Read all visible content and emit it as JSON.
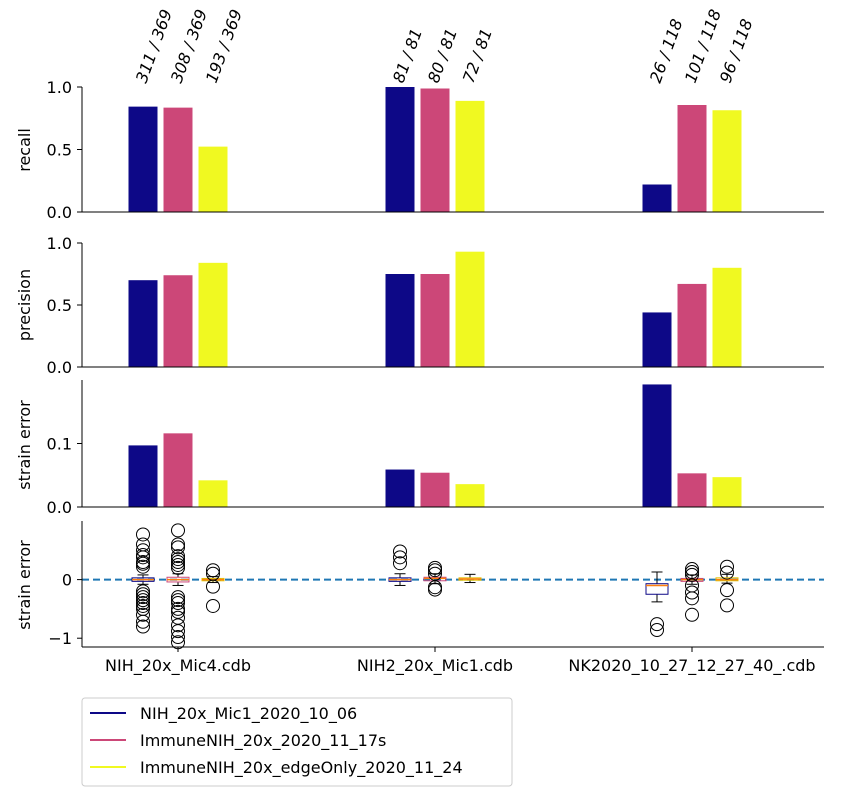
{
  "colors": {
    "series": [
      "#0d0887",
      "#cc4778",
      "#f0f921"
    ],
    "zero_line": "#1f77b4",
    "box_edge": "#0000ff",
    "median": "#ff7f0e",
    "flier": "#000000"
  },
  "chart_data": [
    {
      "type": "bar",
      "ylabel": "recall",
      "categories": [
        "NIH_20x_Mic4.cdb",
        "NIH2_20x_Mic1.cdb",
        "NK2020_10_27_12_27_40_.cdb"
      ],
      "ylim": [
        0,
        1
      ],
      "yticks": [
        "0.0",
        "0.5",
        "1.0"
      ],
      "series": [
        {
          "name": "NIH_20x_Mic1_2020_10_06",
          "values": [
            0.843,
            1.0,
            0.22
          ]
        },
        {
          "name": "ImmuneNIH_20x_2020_11_17s",
          "values": [
            0.835,
            0.988,
            0.856
          ]
        },
        {
          "name": "ImmuneNIH_20x_edgeOnly_2020_11_24",
          "values": [
            0.523,
            0.889,
            0.814
          ]
        }
      ],
      "annotations": [
        [
          "311 / 369",
          "308 / 369",
          "193 / 369"
        ],
        [
          "81 / 81",
          "80 / 81",
          "72 / 81"
        ],
        [
          "26 / 118",
          "101 / 118",
          "96 / 118"
        ]
      ]
    },
    {
      "type": "bar",
      "ylabel": "precision",
      "categories": [
        "NIH_20x_Mic4.cdb",
        "NIH2_20x_Mic1.cdb",
        "NK2020_10_27_12_27_40_.cdb"
      ],
      "ylim": [
        0,
        1
      ],
      "yticks": [
        "0.0",
        "0.5",
        "1.0"
      ],
      "series": [
        {
          "name": "NIH_20x_Mic1_2020_10_06",
          "values": [
            0.7,
            0.75,
            0.44
          ]
        },
        {
          "name": "ImmuneNIH_20x_2020_11_17s",
          "values": [
            0.74,
            0.75,
            0.67
          ]
        },
        {
          "name": "ImmuneNIH_20x_edgeOnly_2020_11_24",
          "values": [
            0.84,
            0.93,
            0.8
          ]
        }
      ]
    },
    {
      "type": "bar",
      "ylabel": "strain error",
      "categories": [
        "NIH_20x_Mic4.cdb",
        "NIH2_20x_Mic1.cdb",
        "NK2020_10_27_12_27_40_.cdb"
      ],
      "ylim": [
        0,
        0.2
      ],
      "yticks": [
        "0.0",
        "0.1"
      ],
      "series": [
        {
          "name": "NIH_20x_Mic1_2020_10_06",
          "values": [
            0.097,
            0.059,
            0.193
          ]
        },
        {
          "name": "ImmuneNIH_20x_2020_11_17s",
          "values": [
            0.116,
            0.054,
            0.053
          ]
        },
        {
          "name": "ImmuneNIH_20x_edgeOnly_2020_11_24",
          "values": [
            0.042,
            0.036,
            0.047
          ]
        }
      ]
    },
    {
      "type": "box",
      "ylabel": "strain error",
      "categories": [
        "NIH_20x_Mic4.cdb",
        "NIH2_20x_Mic1.cdb",
        "NK2020_10_27_12_27_40_.cdb"
      ],
      "ylim": [
        -1.15,
        1.0
      ],
      "yticks": [
        -1,
        0
      ],
      "ytick_labels": [
        "−1",
        "0"
      ],
      "zero_line": 0,
      "boxes": [
        [
          {
            "q1": -0.03,
            "median": 0.0,
            "q3": 0.03,
            "whisker_low": -0.08,
            "whisker_high": 0.08,
            "fliers": [
              0.77,
              0.6,
              0.5,
              0.42,
              0.38,
              0.3,
              0.27,
              0.22,
              -0.2,
              -0.25,
              -0.3,
              -0.35,
              -0.4,
              -0.45,
              -0.5,
              -0.6,
              -0.72,
              -0.8
            ]
          },
          {
            "q1": -0.04,
            "median": 0.0,
            "q3": 0.04,
            "whisker_low": -0.1,
            "whisker_high": 0.1,
            "fliers": [
              0.84,
              0.6,
              0.55,
              0.4,
              0.35,
              0.3,
              0.25,
              0.2,
              -0.3,
              -0.35,
              -0.4,
              -0.5,
              -0.55,
              -0.65,
              -0.78,
              -0.88,
              -0.98,
              -1.07
            ]
          },
          {
            "q1": -0.02,
            "median": 0.0,
            "q3": 0.02,
            "whisker_low": -0.05,
            "whisker_high": 0.05,
            "fliers": [
              0.16,
              0.1,
              -0.12,
              -0.45
            ]
          }
        ],
        [
          {
            "q1": -0.03,
            "median": 0.0,
            "q3": 0.03,
            "whisker_low": -0.1,
            "whisker_high": 0.1,
            "fliers": [
              0.48,
              0.38,
              0.28
            ]
          },
          {
            "q1": -0.02,
            "median": 0.02,
            "q3": 0.04,
            "whisker_low": -0.07,
            "whisker_high": 0.1,
            "fliers": [
              0.2,
              0.16,
              0.1,
              -0.13,
              -0.17
            ]
          },
          {
            "q1": -0.01,
            "median": 0.01,
            "q3": 0.03,
            "whisker_low": -0.05,
            "whisker_high": 0.09,
            "fliers": []
          }
        ],
        [
          {
            "q1": -0.25,
            "median": -0.1,
            "q3": -0.07,
            "whisker_low": -0.38,
            "whisker_high": 0.13,
            "fliers": [
              -0.76,
              -0.86
            ]
          },
          {
            "q1": -0.03,
            "median": 0.0,
            "q3": 0.02,
            "whisker_low": -0.08,
            "whisker_high": 0.08,
            "fliers": [
              0.18,
              0.13,
              0.08,
              -0.1,
              -0.22,
              -0.32,
              -0.6
            ]
          },
          {
            "q1": -0.02,
            "median": 0.0,
            "q3": 0.03,
            "whisker_low": -0.06,
            "whisker_high": 0.09,
            "fliers": [
              0.22,
              0.12,
              -0.18,
              -0.44
            ]
          }
        ]
      ]
    }
  ],
  "legend": {
    "placement": "bottom-left",
    "items": [
      {
        "label": "NIH_20x_Mic1_2020_10_06"
      },
      {
        "label": "ImmuneNIH_20x_2020_11_17s"
      },
      {
        "label": "ImmuneNIH_20x_edgeOnly_2020_11_24"
      }
    ]
  }
}
